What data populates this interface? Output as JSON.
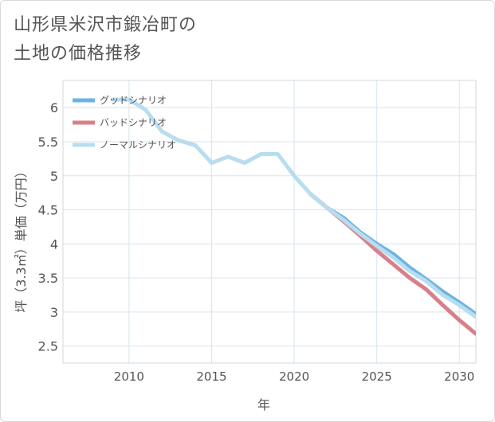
{
  "title": {
    "line1": "山形県米沢市鍛冶町の",
    "line2": "土地の価格推移"
  },
  "chart_data": {
    "type": "line",
    "xlabel": "年",
    "ylabel": "坪（3.3㎡）単価（万円）",
    "xlim": [
      2006,
      2031
    ],
    "ylim": [
      2.25,
      6.4
    ],
    "xticks": [
      2010,
      2015,
      2020,
      2025,
      2030
    ],
    "yticks": [
      2.5,
      3,
      3.5,
      4,
      4.5,
      5,
      5.5,
      6
    ],
    "xtick_labels": [
      "2010",
      "2015",
      "2020",
      "2025",
      "2030"
    ],
    "ytick_labels": [
      "2.5",
      "3",
      "3.5",
      "4",
      "4.5",
      "5",
      "5.5",
      "6"
    ],
    "grid": true,
    "legend_position": "top-left",
    "series": [
      {
        "name": "グッドシナリオ",
        "color": "#6ab4e4",
        "x": [
          2021,
          2022,
          2023,
          2024,
          2025,
          2026,
          2027,
          2028,
          2029,
          2030,
          2031
        ],
        "values": [
          4.73,
          4.53,
          4.38,
          4.17,
          4.0,
          3.85,
          3.65,
          3.48,
          3.3,
          3.14,
          2.97
        ]
      },
      {
        "name": "バッドシナリオ",
        "color": "#d8808a",
        "x": [
          2021,
          2022,
          2023,
          2024,
          2025,
          2026,
          2027,
          2028,
          2029,
          2030,
          2031
        ],
        "values": [
          4.73,
          4.53,
          4.33,
          4.12,
          3.9,
          3.7,
          3.5,
          3.33,
          3.1,
          2.88,
          2.68
        ]
      },
      {
        "name": "ノーマルシナリオ",
        "color": "#b8ddef",
        "x": [
          2009,
          2010,
          2011,
          2012,
          2013,
          2014,
          2015,
          2016,
          2017,
          2018,
          2019,
          2020,
          2021,
          2022,
          2023,
          2024,
          2025,
          2026,
          2027,
          2028,
          2029,
          2030,
          2031
        ],
        "values": [
          6.12,
          6.12,
          5.97,
          5.65,
          5.52,
          5.45,
          5.19,
          5.28,
          5.19,
          5.32,
          5.32,
          5.0,
          4.73,
          4.53,
          4.35,
          4.15,
          3.97,
          3.8,
          3.6,
          3.45,
          3.25,
          3.1,
          2.93
        ]
      }
    ]
  }
}
